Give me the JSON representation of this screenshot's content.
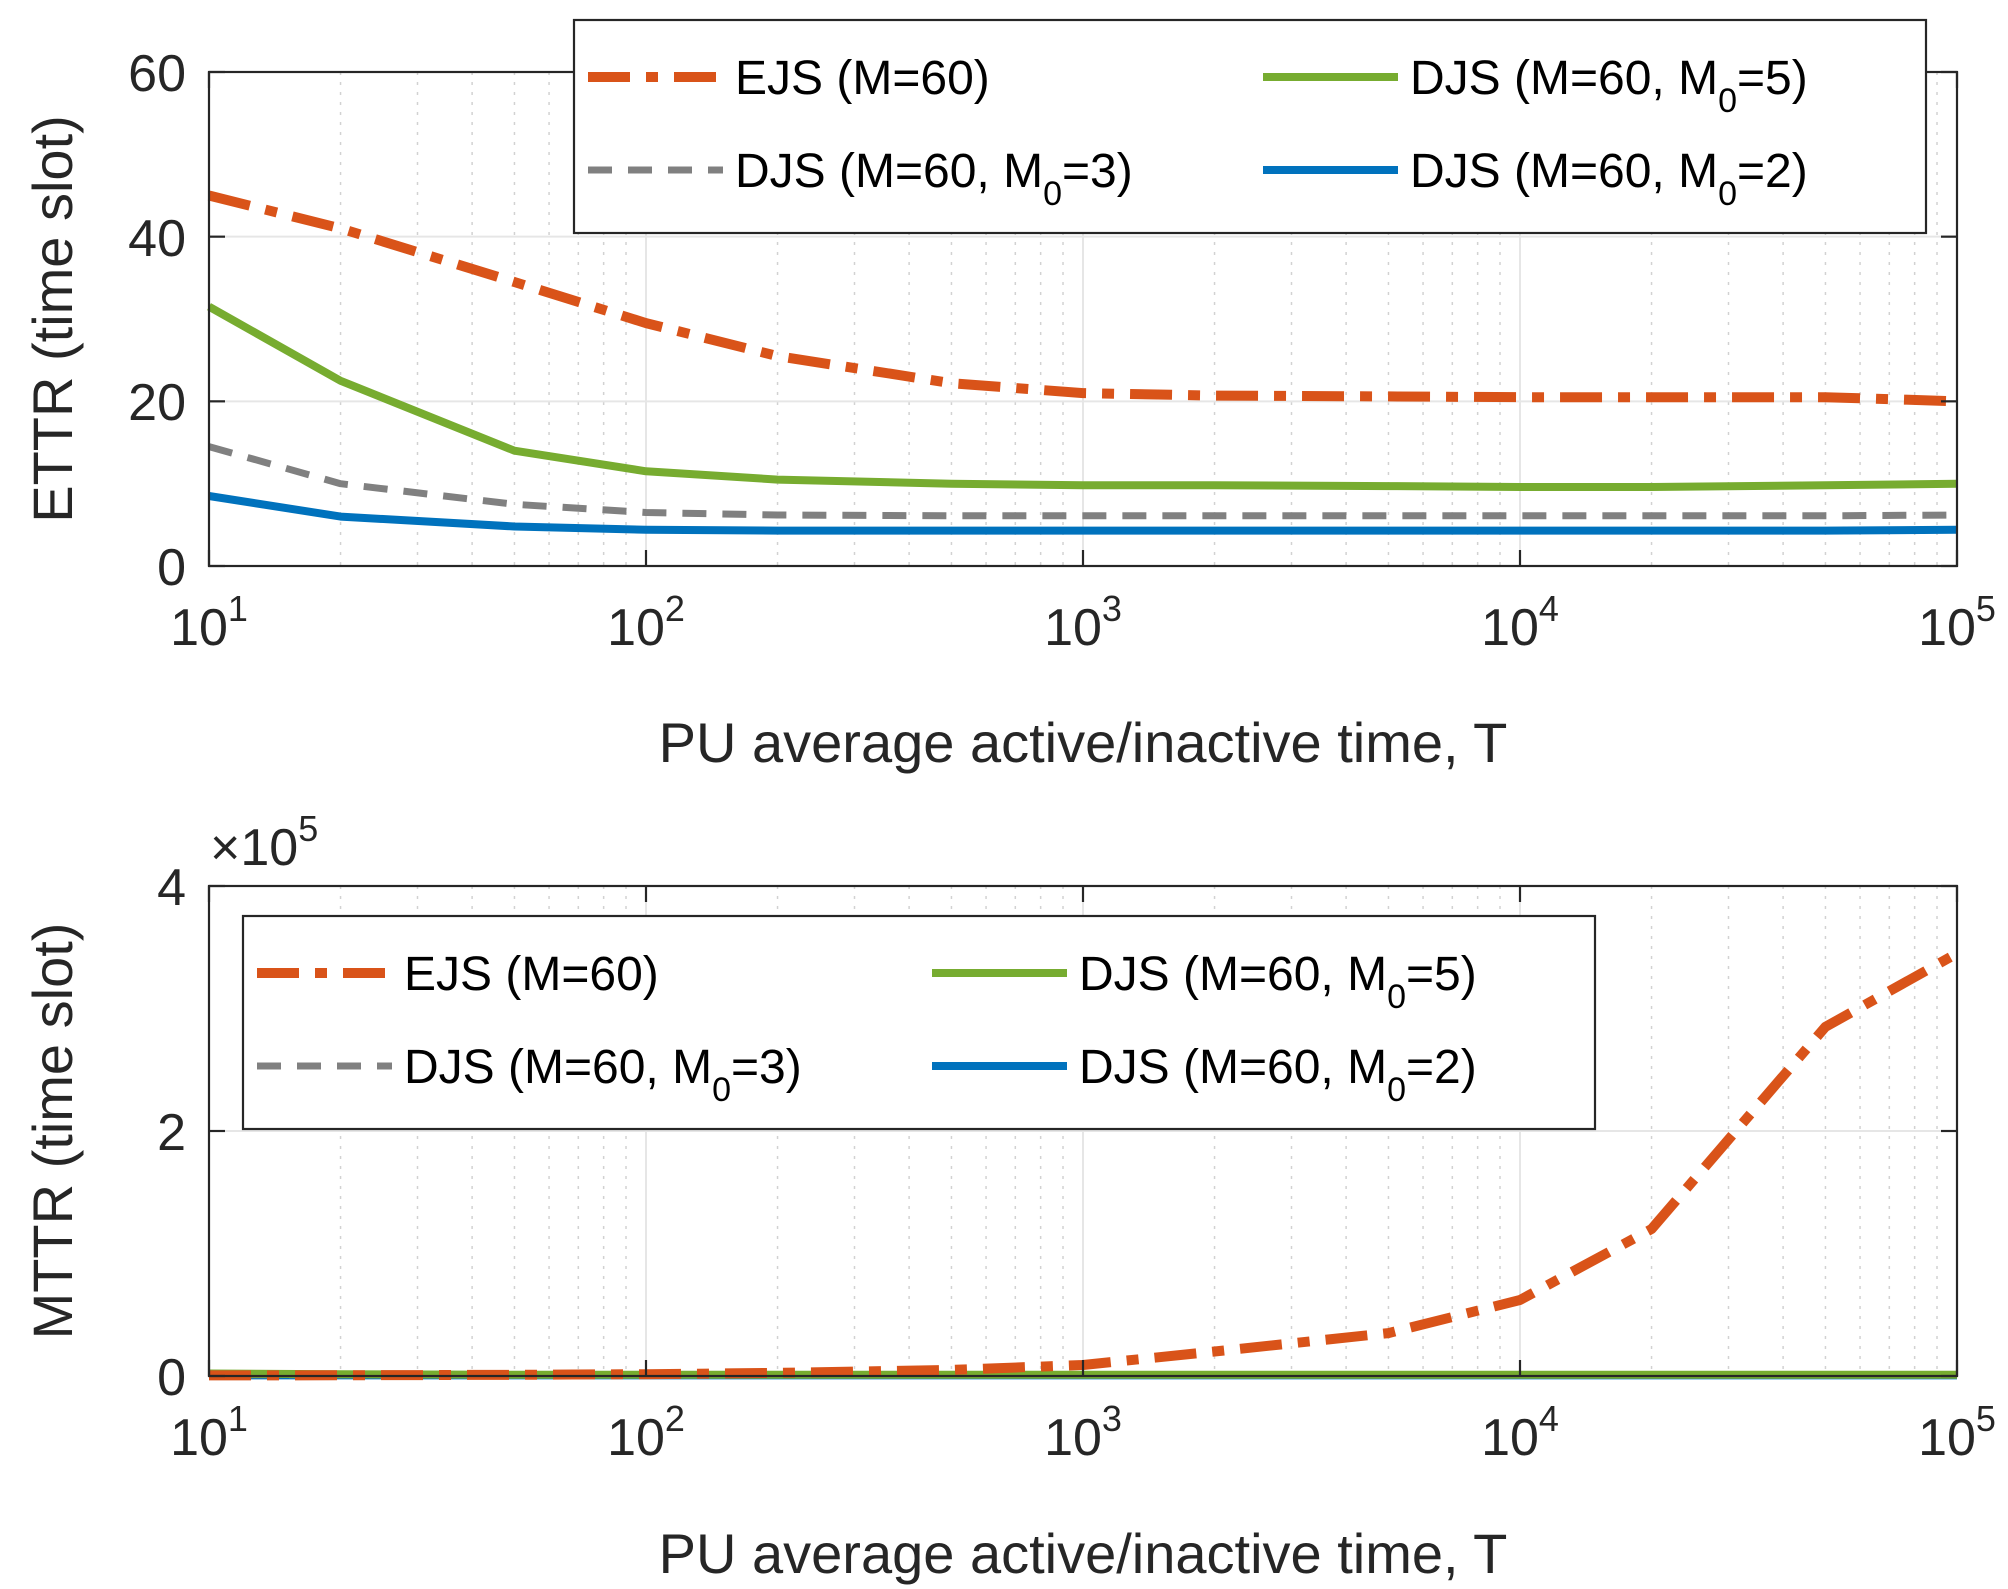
{
  "chart_data": [
    {
      "type": "line",
      "xscale": "log",
      "xlim": [
        10,
        100000
      ],
      "ylim": [
        0,
        60
      ],
      "xlabel": "PU average active/inactive time, T",
      "ylabel": "ETTR (time slot)",
      "x_ticks": [
        {
          "base": "10",
          "exp": "1"
        },
        {
          "base": "10",
          "exp": "2"
        },
        {
          "base": "10",
          "exp": "3"
        },
        {
          "base": "10",
          "exp": "4"
        },
        {
          "base": "10",
          "exp": "5"
        }
      ],
      "y_ticks": [
        0,
        20,
        40,
        60
      ],
      "y_tick_labels": [
        "0",
        "20",
        "40",
        "60"
      ],
      "grid": true,
      "legend": {
        "placement": "top-right",
        "columns": 2
      },
      "x": [
        10,
        20,
        50,
        100,
        200,
        500,
        1000,
        2000,
        5000,
        10000,
        20000,
        50000,
        100000
      ],
      "series": [
        {
          "name": "EJS (M=60)",
          "label_main": "EJS (M=60)",
          "label_pre": "",
          "label_sub": "",
          "label_post": "",
          "color": "#D95319",
          "style": "dashdot",
          "values": [
            45,
            41,
            34.5,
            29.5,
            25.5,
            22.2,
            21,
            20.7,
            20.6,
            20.5,
            20.5,
            20.5,
            20
          ]
        },
        {
          "name": "DJS (M=60, M0=5)",
          "label_main": "",
          "label_pre": "DJS (M=60, M",
          "label_sub": "0",
          "label_post": "=5)",
          "color": "#77AC30",
          "style": "solid",
          "values": [
            31.5,
            22.5,
            14,
            11.5,
            10.5,
            10,
            9.8,
            9.8,
            9.7,
            9.6,
            9.6,
            9.8,
            10
          ]
        },
        {
          "name": "DJS (M=60, M0=3)",
          "label_main": "",
          "label_pre": "DJS (M=60, M",
          "label_sub": "0",
          "label_post": "=3)",
          "color": "#808080",
          "style": "dashed",
          "values": [
            14.5,
            10,
            7.5,
            6.5,
            6.2,
            6.1,
            6.1,
            6.1,
            6.1,
            6.1,
            6.1,
            6.1,
            6.2
          ]
        },
        {
          "name": "DJS (M=60, M0=2)",
          "label_main": "",
          "label_pre": "DJS (M=60, M",
          "label_sub": "0",
          "label_post": "=2)",
          "color": "#0072BD",
          "style": "solid",
          "values": [
            8.5,
            6,
            4.8,
            4.4,
            4.3,
            4.3,
            4.3,
            4.3,
            4.3,
            4.3,
            4.3,
            4.3,
            4.4
          ]
        }
      ]
    },
    {
      "type": "line",
      "xscale": "log",
      "xlim": [
        10,
        100000
      ],
      "ylim": [
        0,
        4
      ],
      "y_multiplier": {
        "prefix": "×10",
        "exp": "5"
      },
      "xlabel": "PU average active/inactive time, T",
      "ylabel": "MTTR (time slot)",
      "x_ticks": [
        {
          "base": "10",
          "exp": "1"
        },
        {
          "base": "10",
          "exp": "2"
        },
        {
          "base": "10",
          "exp": "3"
        },
        {
          "base": "10",
          "exp": "4"
        },
        {
          "base": "10",
          "exp": "5"
        }
      ],
      "y_ticks": [
        0,
        2,
        4
      ],
      "y_tick_labels": [
        "0",
        "2",
        "4"
      ],
      "grid": true,
      "legend": {
        "placement": "top-left",
        "columns": 2
      },
      "x": [
        10,
        20,
        50,
        100,
        200,
        500,
        1000,
        2000,
        5000,
        10000,
        20000,
        50000,
        100000
      ],
      "series": [
        {
          "name": "EJS (M=60)",
          "label_main": "EJS (M=60)",
          "label_pre": "",
          "label_sub": "",
          "label_post": "",
          "color": "#D95319",
          "style": "dashdot",
          "values": [
            0.005,
            0.006,
            0.01,
            0.015,
            0.025,
            0.05,
            0.09,
            0.2,
            0.35,
            0.62,
            1.2,
            2.85,
            3.45
          ]
        },
        {
          "name": "DJS (M=60, M0=5)",
          "label_main": "",
          "label_pre": "DJS (M=60, M",
          "label_sub": "0",
          "label_post": "=5)",
          "color": "#77AC30",
          "style": "solid",
          "values": [
            0.02,
            0.015,
            0.01,
            0.01,
            0.01,
            0.01,
            0.01,
            0.01,
            0.01,
            0.01,
            0.01,
            0.01,
            0.01
          ]
        },
        {
          "name": "DJS (M=60, M0=3)",
          "label_main": "",
          "label_pre": "DJS (M=60, M",
          "label_sub": "0",
          "label_post": "=3)",
          "color": "#808080",
          "style": "dashed",
          "values": [
            0.01,
            0.01,
            0.01,
            0.01,
            0.01,
            0.01,
            0.01,
            0.01,
            0.01,
            0.01,
            0.01,
            0.01,
            0.01
          ]
        },
        {
          "name": "DJS (M=60, M0=2)",
          "label_main": "",
          "label_pre": "DJS (M=60, M",
          "label_sub": "0",
          "label_post": "=2)",
          "color": "#0072BD",
          "style": "solid",
          "values": [
            0.005,
            0.005,
            0.005,
            0.005,
            0.005,
            0.005,
            0.005,
            0.005,
            0.005,
            0.005,
            0.005,
            0.005,
            0.005
          ]
        }
      ]
    }
  ]
}
